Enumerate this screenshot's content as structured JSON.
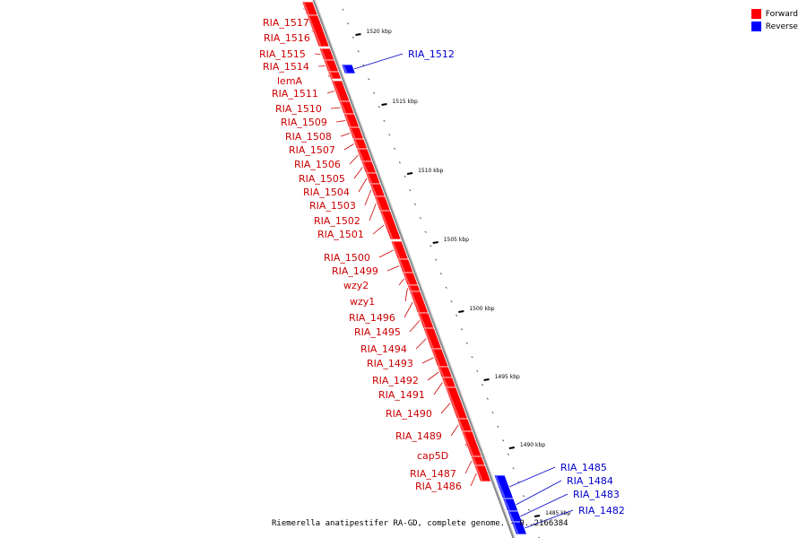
{
  "legend": [
    {
      "label": "Forward",
      "color": "#ff0000"
    },
    {
      "label": "Reverse",
      "color": "#0000ff"
    }
  ],
  "caption": "Riemerella anatipestifer RA-GD, complete genome. - 0..2166384",
  "colors": {
    "forward": "#ff0000",
    "reverse": "#0000ff",
    "backbone": "#888888",
    "label_forward": "#cc0000",
    "label_reverse": "#0000cc"
  },
  "scale_labels": [
    "1520 kbp",
    "1515 kbp",
    "1510 kbp",
    "1505 kbp",
    "1500 kbp",
    "1495 kbp",
    "1490 kbp",
    "1485 kbp"
  ],
  "forward_genes": [
    "RIA_1517",
    "RIA_1516",
    "RIA_1515",
    "RIA_1514",
    "lemA",
    "RIA_1511",
    "RIA_1510",
    "RIA_1509",
    "RIA_1508",
    "RIA_1507",
    "RIA_1506",
    "RIA_1505",
    "RIA_1504",
    "RIA_1503",
    "RIA_1502",
    "RIA_1501",
    "RIA_1500",
    "RIA_1499",
    "wzy2",
    "wzy1",
    "RIA_1496",
    "RIA_1495",
    "RIA_1494",
    "RIA_1493",
    "RIA_1492",
    "RIA_1491",
    "RIA_1490",
    "RIA_1489",
    "cap5D",
    "RIA_1487",
    "RIA_1486"
  ],
  "reverse_genes": [
    "RIA_1512",
    "RIA_1485",
    "RIA_1484",
    "RIA_1483",
    "RIA_1482"
  ]
}
